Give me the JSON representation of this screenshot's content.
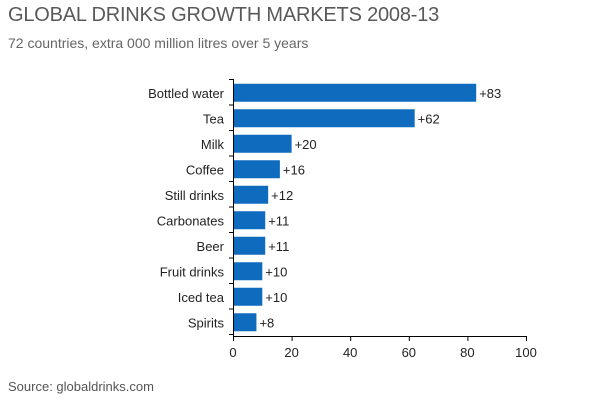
{
  "title": "GLOBAL DRINKS GROWTH MARKETS 2008-13",
  "subtitle": "72 countries, extra 000 million litres over 5 years",
  "source": "Source: globaldrinks.com",
  "colors": {
    "bar": "#0e6bbd",
    "axis": "#000000",
    "text": "#222222"
  },
  "chart_data": {
    "type": "bar",
    "orientation": "horizontal",
    "title": "GLOBAL DRINKS GROWTH MARKETS 2008-13",
    "subtitle": "72 countries, extra 000 million litres over 5 years",
    "xlabel": "",
    "ylabel": "",
    "categories": [
      "Bottled water",
      "Tea",
      "Milk",
      "Coffee",
      "Still drinks",
      "Carbonates",
      "Beer",
      "Fruit drinks",
      "Iced tea",
      "Spirits"
    ],
    "values": [
      83,
      62,
      20,
      16,
      12,
      11,
      11,
      10,
      10,
      8
    ],
    "value_labels": [
      "+83",
      "+62",
      "+20",
      "+16",
      "+12",
      "+11",
      "+11",
      "+10",
      "+10",
      "+8"
    ],
    "xlim": [
      0,
      100
    ],
    "xticks": [
      0,
      20,
      40,
      60,
      80,
      100
    ],
    "xtick_labels": [
      "0",
      "20",
      "40",
      "60",
      "80",
      "100"
    ],
    "grid": false,
    "legend": "none"
  }
}
